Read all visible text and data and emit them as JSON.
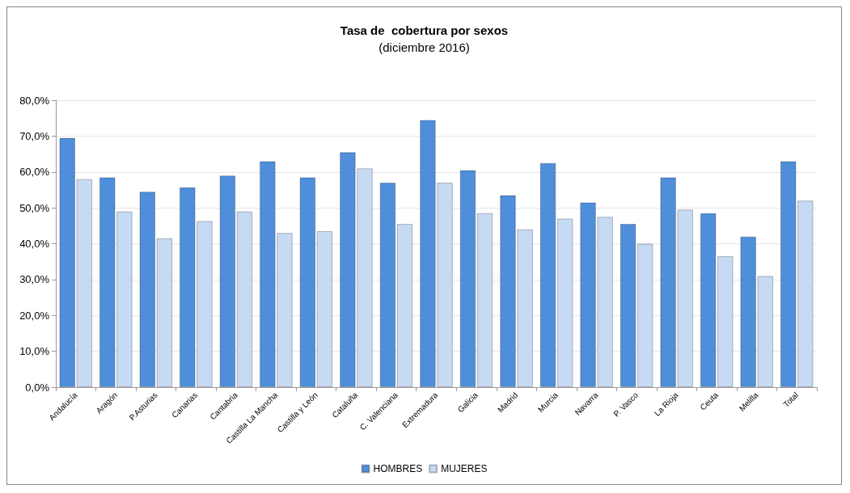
{
  "chart_data": {
    "type": "bar",
    "title": "Tasa de  cobertura por sexos",
    "subtitle": "(diciembre 2016)",
    "categories": [
      "Andalucía",
      "Aragón",
      "P.Asturias",
      "Canarias",
      "Cantabria",
      "Castilla La Mancha",
      "Castilla y León",
      "Cataluña",
      "C. Valenciana",
      "Extremadura",
      "Galicia",
      "Madrid",
      "Murcia",
      "Navarra",
      "P. Vasco",
      "La Rioja",
      "Ceuta",
      "Melilla",
      "Total"
    ],
    "series": [
      {
        "name": "HOMBRES",
        "color": "#4f8edb",
        "values": [
          69.5,
          58.5,
          54.5,
          55.7,
          59,
          63,
          58.5,
          65.5,
          57,
          74.5,
          60.5,
          53.5,
          62.5,
          51.5,
          45.5,
          58.5,
          48.5,
          42,
          63
        ]
      },
      {
        "name": "MUJERES",
        "color": "#c6daf3",
        "values": [
          58,
          49,
          41.5,
          46.3,
          49,
          43,
          43.5,
          61,
          45.5,
          57,
          48.5,
          44,
          47,
          47.5,
          40,
          49.5,
          36.5,
          31,
          52
        ]
      }
    ],
    "ylim": [
      0,
      80
    ],
    "yticks": [
      {
        "value": 0,
        "label": "0,0%"
      },
      {
        "value": 10,
        "label": "10,0%"
      },
      {
        "value": 20,
        "label": "20,0%"
      },
      {
        "value": 30,
        "label": "30,0%"
      },
      {
        "value": 40,
        "label": "40,0%"
      },
      {
        "value": 50,
        "label": "50,0%"
      },
      {
        "value": 60,
        "label": "60,0%"
      },
      {
        "value": 70,
        "label": "70,0%"
      },
      {
        "value": 80,
        "label": "80,0%"
      }
    ],
    "grid": "y",
    "legend": "bottom"
  }
}
